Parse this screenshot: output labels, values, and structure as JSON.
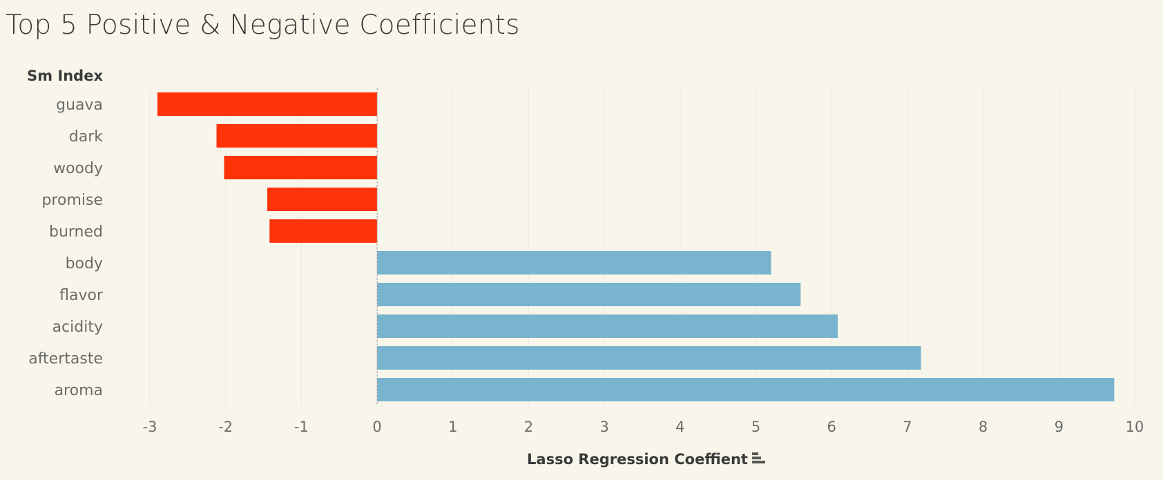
{
  "title": "Top 5 Positive & Negative Coefficients",
  "colors": {
    "negative": "#ff330a",
    "positive": "#79b4cf",
    "background": "#f8f5ea",
    "grid": "#ece9df"
  },
  "chart_data": {
    "type": "bar",
    "orientation": "horizontal",
    "row_header": "Sm Index",
    "xlabel": "Lasso Regression Coeffient",
    "xlim": [
      -3,
      10
    ],
    "xticks": [
      -3,
      -2,
      -1,
      0,
      1,
      2,
      3,
      4,
      5,
      6,
      7,
      8,
      9,
      10
    ],
    "grid": "vertical",
    "sort_icon": "sort-descending-icon",
    "categories": [
      "guava",
      "dark",
      "woody",
      "promise",
      "burned",
      "body",
      "flavor",
      "acidity",
      "aftertaste",
      "aroma"
    ],
    "values": [
      -2.9,
      -2.12,
      -2.02,
      -1.45,
      -1.42,
      5.2,
      5.59,
      6.08,
      7.18,
      9.73
    ]
  }
}
